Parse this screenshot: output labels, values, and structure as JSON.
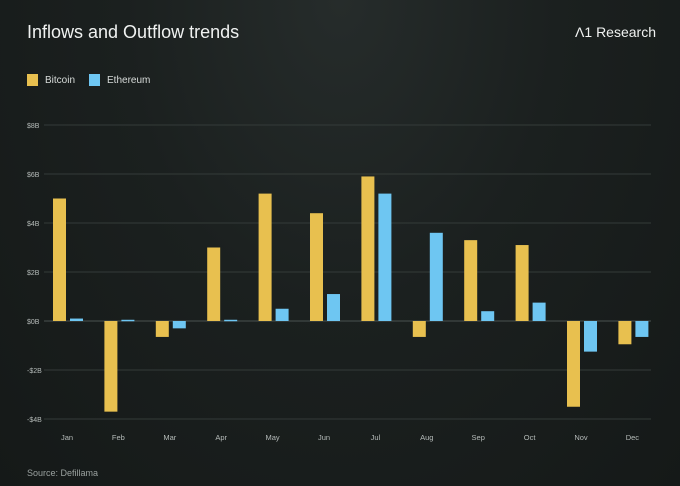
{
  "title": "Inflows and Outflow trends",
  "brand": "Λ1 Research",
  "source": "Source: Defillama",
  "colors": {
    "bitcoin": "#e8c04f",
    "ethereum": "#6ec6f2"
  },
  "chart_data": {
    "type": "bar",
    "title": "Inflows and Outflow trends",
    "xlabel": "",
    "ylabel": "",
    "categories": [
      "Jan",
      "Feb",
      "Mar",
      "Apr",
      "May",
      "Jun",
      "Jul",
      "Aug",
      "Sep",
      "Oct",
      "Nov",
      "Dec"
    ],
    "series": [
      {
        "name": "Bitcoin",
        "values": [
          5.0,
          -3.7,
          -0.65,
          3.0,
          5.2,
          4.4,
          5.9,
          -0.65,
          3.3,
          3.1,
          -3.5,
          -0.95
        ]
      },
      {
        "name": "Ethereum",
        "values": [
          0.1,
          0.05,
          -0.3,
          0.05,
          0.5,
          1.1,
          5.2,
          3.6,
          0.4,
          0.75,
          -1.25,
          -0.65
        ]
      }
    ],
    "yticks": [
      8,
      6,
      4,
      2,
      0,
      -2,
      -4
    ],
    "ytick_labels": [
      "$8B",
      "$6B",
      "$4B",
      "$2B",
      "$0B",
      "-$2B",
      "-$4B"
    ],
    "ylim": [
      -4,
      8
    ],
    "grid": true,
    "legend": "top-left",
    "units": "USD billions"
  }
}
